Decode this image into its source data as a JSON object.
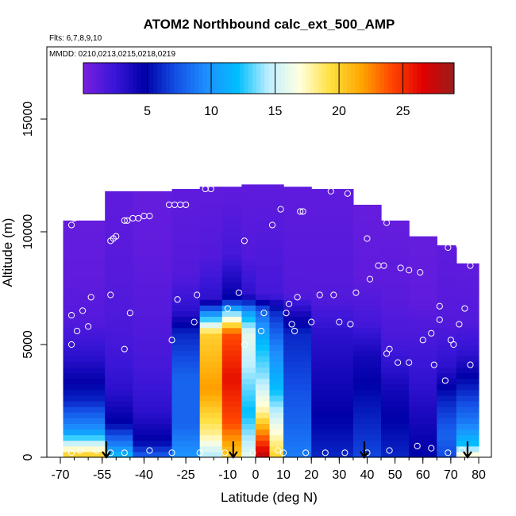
{
  "chart_data": {
    "type": "heatmap",
    "title": "ATOM2 Northbound calc_ext_500_AMP",
    "flights_note": "Flts: 6,7,8,9,10",
    "dates_note": "MMDD: 0210,0213,0215,0218,0219",
    "xlabel": "Latitude (deg N)",
    "ylabel": "Altitude (m)",
    "xlim": [
      -70,
      85
    ],
    "ylim": [
      0,
      18000
    ],
    "x_ticks": [
      -70,
      -55,
      -40,
      -25,
      -10,
      0,
      10,
      20,
      30,
      40,
      50,
      60,
      70,
      80
    ],
    "y_ticks": [
      0,
      5000,
      10000,
      15000
    ],
    "colorbar": {
      "range": [
        0,
        29
      ],
      "ticks": [
        5,
        10,
        15,
        20,
        25
      ],
      "colors": [
        "#7a1fe0",
        "#3a16d8",
        "#0000a8",
        "#1450e6",
        "#1e90ff",
        "#00bfff",
        "#bfefff",
        "#ffffe0",
        "#ffe040",
        "#ffa500",
        "#ff4500",
        "#e00000",
        "#9b1c1c"
      ]
    },
    "arrow_latitudes": [
      -53.5,
      -8,
      39,
      76
    ],
    "profiles": [
      {
        "x0": -69,
        "x1": -54,
        "top": 10500,
        "levels": [
          [
            0,
            21
          ],
          [
            500,
            16
          ],
          [
            1200,
            10
          ],
          [
            2500,
            6
          ],
          [
            4500,
            3
          ],
          [
            6000,
            1.5
          ],
          [
            8000,
            1
          ],
          [
            10500,
            0.8
          ]
        ]
      },
      {
        "x0": -54,
        "x1": -44,
        "top": 11800,
        "levels": [
          [
            0,
            12
          ],
          [
            600,
            9
          ],
          [
            1500,
            5
          ],
          [
            3000,
            3
          ],
          [
            5000,
            2
          ],
          [
            7000,
            1.5
          ],
          [
            11800,
            1
          ]
        ]
      },
      {
        "x0": -44,
        "x1": -30,
        "top": 11800,
        "levels": [
          [
            0,
            8
          ],
          [
            700,
            5
          ],
          [
            2000,
            3
          ],
          [
            4000,
            2
          ],
          [
            6000,
            1.5
          ],
          [
            9000,
            1
          ],
          [
            11800,
            0.8
          ]
        ]
      },
      {
        "x0": -30,
        "x1": -20,
        "top": 11900,
        "levels": [
          [
            0,
            10
          ],
          [
            1500,
            8
          ],
          [
            3500,
            8
          ],
          [
            5500,
            6
          ],
          [
            6500,
            3
          ],
          [
            8000,
            1.5
          ],
          [
            11900,
            1
          ]
        ]
      },
      {
        "x0": -20,
        "x1": -12,
        "top": 12000,
        "levels": [
          [
            0,
            14
          ],
          [
            1000,
            18
          ],
          [
            3000,
            22
          ],
          [
            5500,
            20
          ],
          [
            6200,
            12
          ],
          [
            7000,
            3
          ],
          [
            9000,
            1.5
          ],
          [
            12000,
            1
          ]
        ]
      },
      {
        "x0": -12,
        "x1": -5,
        "top": 12000,
        "levels": [
          [
            0,
            20
          ],
          [
            1500,
            24
          ],
          [
            3500,
            26
          ],
          [
            5500,
            24
          ],
          [
            6300,
            15
          ],
          [
            7000,
            5
          ],
          [
            9000,
            2
          ],
          [
            12000,
            1
          ]
        ]
      },
      {
        "x0": -5,
        "x1": 0,
        "top": 12100,
        "levels": [
          [
            0,
            16
          ],
          [
            2000,
            12
          ],
          [
            4500,
            15
          ],
          [
            5500,
            16
          ],
          [
            6500,
            10
          ],
          [
            7200,
            3
          ],
          [
            9000,
            1.5
          ],
          [
            12100,
            1
          ]
        ]
      },
      {
        "x0": 0,
        "x1": 5,
        "top": 12100,
        "levels": [
          [
            0,
            28
          ],
          [
            800,
            24
          ],
          [
            2000,
            18
          ],
          [
            3500,
            14
          ],
          [
            5000,
            12
          ],
          [
            6500,
            8
          ],
          [
            7200,
            2
          ],
          [
            12100,
            1
          ]
        ]
      },
      {
        "x0": 5,
        "x1": 10,
        "top": 12100,
        "levels": [
          [
            0,
            20
          ],
          [
            1500,
            16
          ],
          [
            3000,
            12
          ],
          [
            5000,
            9
          ],
          [
            6500,
            6
          ],
          [
            7200,
            2
          ],
          [
            12100,
            1
          ]
        ]
      },
      {
        "x0": 10,
        "x1": 20,
        "top": 12000,
        "levels": [
          [
            0,
            9
          ],
          [
            1500,
            8
          ],
          [
            3500,
            7
          ],
          [
            5500,
            6
          ],
          [
            6300,
            4
          ],
          [
            7200,
            1.5
          ],
          [
            12000,
            1
          ]
        ]
      },
      {
        "x0": 20,
        "x1": 35,
        "top": 11900,
        "levels": [
          [
            0,
            6
          ],
          [
            1500,
            5
          ],
          [
            3500,
            4
          ],
          [
            5500,
            3
          ],
          [
            7000,
            1.5
          ],
          [
            11900,
            1
          ]
        ]
      },
      {
        "x0": 35,
        "x1": 45,
        "top": 11200,
        "levels": [
          [
            0,
            7
          ],
          [
            1500,
            6
          ],
          [
            3000,
            5
          ],
          [
            4500,
            4
          ],
          [
            6000,
            2
          ],
          [
            8000,
            1
          ],
          [
            11200,
            0.8
          ]
        ]
      },
      {
        "x0": 45,
        "x1": 55,
        "top": 10500,
        "levels": [
          [
            0,
            6
          ],
          [
            1500,
            5
          ],
          [
            3000,
            4
          ],
          [
            5000,
            2
          ],
          [
            7000,
            1.2
          ],
          [
            10500,
            0.8
          ]
        ]
      },
      {
        "x0": 55,
        "x1": 65,
        "top": 9800,
        "levels": [
          [
            0,
            5
          ],
          [
            1500,
            4
          ],
          [
            3000,
            3
          ],
          [
            5000,
            2
          ],
          [
            7000,
            1
          ],
          [
            9800,
            0.8
          ]
        ]
      },
      {
        "x0": 65,
        "x1": 72,
        "top": 9400,
        "levels": [
          [
            0,
            7
          ],
          [
            1000,
            8
          ],
          [
            2500,
            6
          ],
          [
            4000,
            3
          ],
          [
            6000,
            1.5
          ],
          [
            9400,
            1
          ]
        ]
      },
      {
        "x0": 72,
        "x1": 80,
        "top": 8600,
        "levels": [
          [
            0,
            18
          ],
          [
            600,
            12
          ],
          [
            1500,
            9
          ],
          [
            3000,
            6
          ],
          [
            4500,
            3
          ],
          [
            6000,
            1.5
          ],
          [
            8600,
            1
          ]
        ]
      }
    ],
    "sample_points": [
      [
        -66,
        10300
      ],
      [
        -65,
        10600
      ],
      [
        -63,
        11200
      ],
      [
        -60,
        11900
      ],
      [
        -59,
        11800
      ],
      [
        -66,
        6300
      ],
      [
        -64,
        5600
      ],
      [
        -62,
        6500
      ],
      [
        -60,
        5800
      ],
      [
        -59,
        7100
      ],
      [
        -66,
        5000
      ],
      [
        -52,
        9600
      ],
      [
        -51,
        9700
      ],
      [
        -50,
        9800
      ],
      [
        -52,
        7200
      ],
      [
        -47,
        10500
      ],
      [
        -46,
        10500
      ],
      [
        -44,
        10600
      ],
      [
        -42,
        10600
      ],
      [
        -40,
        10700
      ],
      [
        -38,
        10700
      ],
      [
        -45,
        6400
      ],
      [
        -47,
        4800
      ],
      [
        -31,
        11200
      ],
      [
        -29,
        11200
      ],
      [
        -27,
        11200
      ],
      [
        -25,
        11200
      ],
      [
        -18,
        11900
      ],
      [
        -16,
        11900
      ],
      [
        -28,
        7000
      ],
      [
        -21,
        7200
      ],
      [
        -22,
        6000
      ],
      [
        -30,
        5200
      ],
      [
        -10,
        6600
      ],
      [
        -4,
        9600
      ],
      [
        -6,
        7300
      ],
      [
        -4,
        5000
      ],
      [
        2,
        5600
      ],
      [
        3,
        6400
      ],
      [
        6,
        10300
      ],
      [
        9,
        11000
      ],
      [
        11,
        6400
      ],
      [
        12,
        6800
      ],
      [
        13,
        5900
      ],
      [
        14,
        5600
      ],
      [
        15,
        7100
      ],
      [
        16,
        10900
      ],
      [
        17,
        10900
      ],
      [
        20,
        6000
      ],
      [
        23,
        7200
      ],
      [
        27,
        11800
      ],
      [
        28,
        7200
      ],
      [
        30,
        6000
      ],
      [
        33,
        11700
      ],
      [
        34,
        5900
      ],
      [
        36,
        7300
      ],
      [
        39,
        11900
      ],
      [
        40,
        9700
      ],
      [
        41,
        7900
      ],
      [
        44,
        8500
      ],
      [
        46,
        8500
      ],
      [
        47,
        10400
      ],
      [
        47,
        4600
      ],
      [
        48,
        4800
      ],
      [
        51,
        4200
      ],
      [
        52,
        8400
      ],
      [
        55,
        8300
      ],
      [
        55,
        4200
      ],
      [
        59,
        8200
      ],
      [
        60,
        5200
      ],
      [
        63,
        5500
      ],
      [
        64,
        4100
      ],
      [
        66,
        6100
      ],
      [
        66,
        6700
      ],
      [
        68,
        3400
      ],
      [
        69,
        9300
      ],
      [
        70,
        5200
      ],
      [
        71,
        5000
      ],
      [
        73,
        5900
      ],
      [
        73,
        9400
      ],
      [
        75,
        6600
      ],
      [
        77,
        8500
      ],
      [
        77,
        4100
      ],
      [
        -66,
        200
      ],
      [
        -63,
        300
      ],
      [
        -57,
        300
      ],
      [
        -52,
        200
      ],
      [
        -47,
        200
      ],
      [
        -38,
        300
      ],
      [
        -30,
        200
      ],
      [
        -20,
        200
      ],
      [
        -11,
        200
      ],
      [
        -1,
        200
      ],
      [
        8,
        300
      ],
      [
        10,
        200
      ],
      [
        18,
        200
      ],
      [
        25,
        200
      ],
      [
        32,
        200
      ],
      [
        40,
        200
      ],
      [
        48,
        300
      ],
      [
        58,
        500
      ],
      [
        63,
        400
      ],
      [
        69,
        200
      ],
      [
        74,
        300
      ]
    ]
  }
}
